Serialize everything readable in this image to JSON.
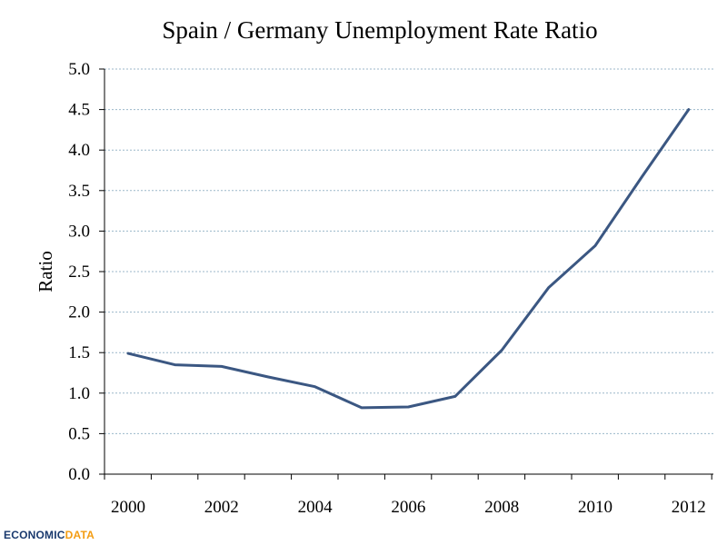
{
  "chart_data": {
    "type": "line",
    "title": "Spain / Germany Unemployment Rate Ratio",
    "xlabel": "",
    "ylabel": "Ratio",
    "xlim": [
      2000,
      2012
    ],
    "ylim": [
      0,
      5
    ],
    "x_ticks": [
      "2000",
      "2002",
      "2004",
      "2006",
      "2008",
      "2010",
      "2012"
    ],
    "y_ticks": [
      "0.0",
      "0.5",
      "1.0",
      "1.5",
      "2.0",
      "2.5",
      "3.0",
      "3.5",
      "4.0",
      "4.5",
      "5.0"
    ],
    "grid": true,
    "series": [
      {
        "color": "#3b5782",
        "points": [
          {
            "x": 2000,
            "y": 1.49
          },
          {
            "x": 2001,
            "y": 1.35
          },
          {
            "x": 2002,
            "y": 1.33
          },
          {
            "x": 2003,
            "y": 1.2
          },
          {
            "x": 2004,
            "y": 1.08
          },
          {
            "x": 2005,
            "y": 0.82
          },
          {
            "x": 2006,
            "y": 0.83
          },
          {
            "x": 2007,
            "y": 0.96
          },
          {
            "x": 2008,
            "y": 1.53
          },
          {
            "x": 2009,
            "y": 2.3
          },
          {
            "x": 2010,
            "y": 2.82
          },
          {
            "x": 2011,
            "y": 3.67
          },
          {
            "x": 2012,
            "y": 4.5
          }
        ]
      }
    ]
  },
  "logo": {
    "part1": "ECONOMIC",
    "part2": "DATA"
  }
}
